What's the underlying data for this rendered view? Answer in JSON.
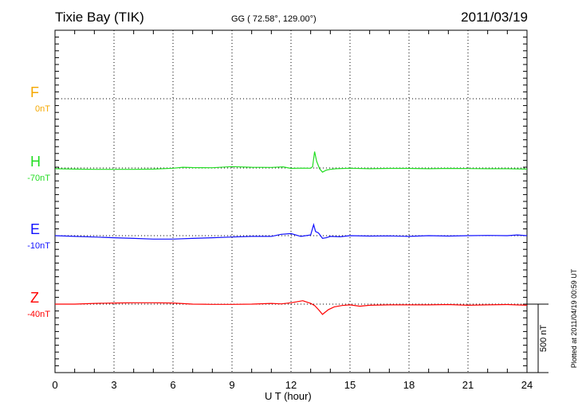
{
  "header": {
    "station": "Tixie Bay (TIK)",
    "coords": "GG ( 72.58°, 129.00°)",
    "date": "2011/03/19"
  },
  "footer": {
    "plotted": "Plotted at 2011/04/19 00:59 UT",
    "scale_label": "500 nT"
  },
  "chart_data": {
    "type": "line",
    "title": "Tixie Bay (TIK)",
    "xlabel": "U T (hour)",
    "ylabel": "",
    "xlim": [
      0,
      24
    ],
    "x_ticks": [
      "0",
      "3",
      "6",
      "9",
      "12",
      "15",
      "18",
      "21",
      "24"
    ],
    "scale_bar_nT": 500,
    "grid": true,
    "series": [
      {
        "name": "F",
        "offset_label": "0nT",
        "color": "#f5a800",
        "x": [],
        "values": []
      },
      {
        "name": "H",
        "offset_label": "-70nT",
        "color": "#22dd22",
        "x": [
          0,
          1,
          2,
          3,
          4,
          5,
          6,
          6.5,
          7,
          8,
          9,
          10,
          11,
          11.6,
          12,
          12.5,
          13,
          13.1,
          13.2,
          13.3,
          13.45,
          13.6,
          13.8,
          14,
          14.3,
          15,
          16,
          17,
          18,
          19,
          20,
          21,
          22,
          23,
          24
        ],
        "values": [
          -5,
          -8,
          -10,
          -10,
          -10,
          -8,
          -2,
          5,
          3,
          2,
          10,
          5,
          4,
          8,
          -3,
          -1,
          -2,
          10,
          120,
          50,
          -5,
          -30,
          -15,
          -10,
          -5,
          -2,
          -5,
          -3,
          -3,
          -5,
          -3,
          -4,
          -5,
          -5,
          -8
        ]
      },
      {
        "name": "E",
        "offset_label": "-10nT",
        "color": "#1010ff",
        "x": [
          0,
          1,
          2,
          3,
          4,
          5,
          6,
          7,
          8,
          9,
          10,
          11,
          11.5,
          12,
          12.5,
          13,
          13.15,
          13.25,
          13.4,
          13.6,
          13.8,
          14,
          14.5,
          15,
          16,
          17,
          18,
          19,
          20,
          21,
          22,
          23,
          23.5,
          24
        ],
        "values": [
          0,
          -5,
          -10,
          -15,
          -20,
          -25,
          -25,
          -20,
          -15,
          -10,
          -5,
          -5,
          10,
          15,
          -5,
          5,
          80,
          30,
          20,
          -20,
          -15,
          -5,
          -8,
          0,
          -3,
          -2,
          -5,
          0,
          -3,
          0,
          2,
          0,
          5,
          0
        ]
      },
      {
        "name": "Z",
        "offset_label": "-40nT",
        "color": "#ff0000",
        "x": [
          0,
          1,
          2,
          3,
          4,
          5,
          6,
          7,
          8,
          9,
          10,
          11,
          11.5,
          12,
          12.6,
          13,
          13.2,
          13.4,
          13.6,
          13.9,
          14.2,
          14.6,
          15,
          15.5,
          16,
          17,
          18,
          19,
          20,
          21,
          22,
          23,
          24
        ],
        "values": [
          0,
          0,
          5,
          8,
          10,
          10,
          8,
          0,
          -2,
          -2,
          0,
          5,
          2,
          10,
          25,
          5,
          -10,
          -40,
          -75,
          -40,
          -20,
          -10,
          -5,
          -15,
          -8,
          -5,
          -5,
          -5,
          -3,
          -8,
          -5,
          -3,
          -8
        ]
      }
    ]
  }
}
